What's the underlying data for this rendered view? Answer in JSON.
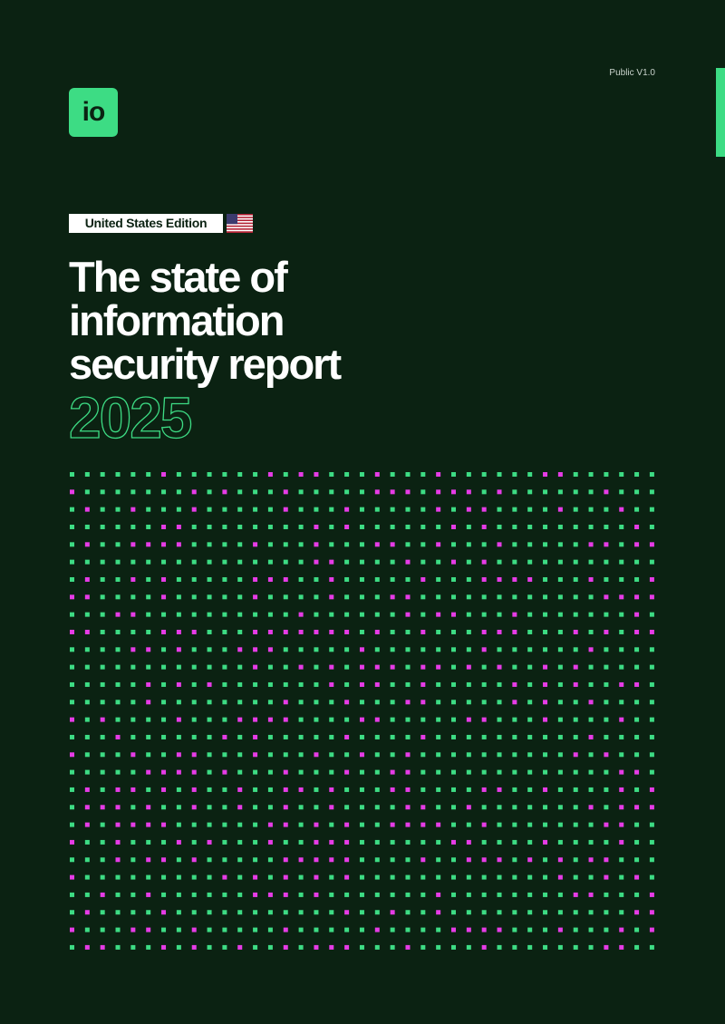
{
  "header": {
    "version": "Public V1.0",
    "logo": "io"
  },
  "cover": {
    "edition": "United States Edition",
    "title": [
      "The state of",
      "information",
      "security report"
    ],
    "year": "2025"
  }
}
